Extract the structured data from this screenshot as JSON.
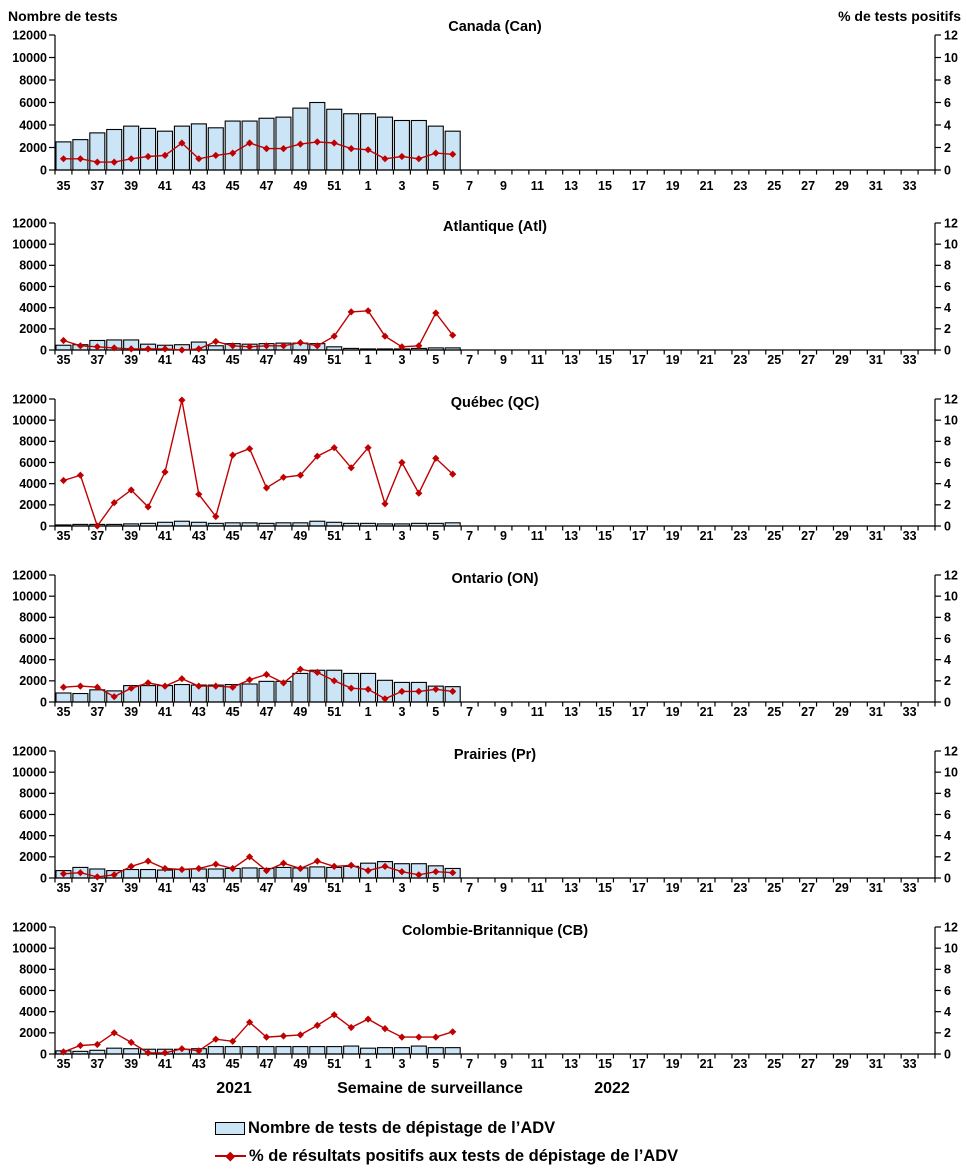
{
  "header": {
    "left_axis_title": "Nombre de tests",
    "right_axis_title": "% de tests positifs"
  },
  "footer": {
    "year_left": "2021",
    "x_axis_title": "Semaine de surveillance",
    "year_right": "2022"
  },
  "legend": {
    "bar_label": "Nombre de tests de dépistage de l’ADV",
    "line_label": "% de résultats positifs aux tests de dépistage de l’ADV"
  },
  "colors": {
    "bar_fill": "#CBE5F7",
    "bar_stroke": "#000000",
    "line": "#C00000",
    "axis": "#000000",
    "text": "#000000"
  },
  "chart_data": {
    "type": "combo_bar_line_small_multiples",
    "x_axis": {
      "title": "Semaine de surveillance",
      "weeks": [
        "35",
        "36",
        "37",
        "38",
        "39",
        "40",
        "41",
        "42",
        "43",
        "44",
        "45",
        "46",
        "47",
        "48",
        "49",
        "50",
        "51",
        "52",
        "1",
        "2",
        "3",
        "4",
        "5",
        "6",
        "7",
        "8",
        "9",
        "10",
        "11",
        "12",
        "13",
        "14",
        "15",
        "16",
        "17",
        "18",
        "19",
        "20",
        "21",
        "22",
        "23",
        "24",
        "25",
        "26",
        "27",
        "28",
        "29",
        "30",
        "31",
        "32",
        "33",
        "34"
      ],
      "tick_labels": [
        "35",
        "37",
        "39",
        "41",
        "43",
        "45",
        "47",
        "49",
        "51",
        "1",
        "3",
        "5",
        "7",
        "9",
        "11",
        "13",
        "15",
        "17",
        "19",
        "21",
        "23",
        "25",
        "27",
        "29",
        "31",
        "33"
      ],
      "year_left": "2021",
      "year_right": "2022"
    },
    "left_axis": {
      "title": "Nombre de tests",
      "min": 0,
      "max": 12000,
      "step": 2000,
      "tick_labels": [
        "0",
        "2000",
        "4000",
        "6000",
        "8000",
        "10000",
        "12000"
      ]
    },
    "right_axis": {
      "title": "% de tests positifs",
      "min": 0,
      "max": 12,
      "step": 2,
      "tick_labels": [
        "0",
        "2",
        "4",
        "6",
        "8",
        "10",
        "12"
      ]
    },
    "bar_series_name": "Nombre de tests de dépistage de l’ADV",
    "line_series_name": "% de résultats positifs aux tests de dépistage de l’ADV",
    "data_weeks": [
      "35",
      "36",
      "37",
      "38",
      "39",
      "40",
      "41",
      "42",
      "43",
      "44",
      "45",
      "46",
      "47",
      "48",
      "49",
      "50",
      "51",
      "52",
      "1",
      "2",
      "3",
      "4",
      "5",
      "6"
    ],
    "panels": [
      {
        "title": "Canada (Can)",
        "tests": [
          2500,
          2700,
          3300,
          3600,
          3900,
          3700,
          3450,
          3900,
          4100,
          3750,
          4350,
          4350,
          4600,
          4700,
          5500,
          6000,
          5400,
          5000,
          5000,
          4700,
          4400,
          4400,
          3900,
          3450
        ],
        "pct_positive": [
          1.0,
          1.0,
          0.7,
          0.7,
          1.0,
          1.2,
          1.3,
          2.4,
          1.0,
          1.3,
          1.5,
          2.4,
          1.9,
          1.9,
          2.3,
          2.5,
          2.4,
          1.9,
          1.8,
          1.0,
          1.2,
          1.0,
          1.5,
          1.4
        ]
      },
      {
        "title": "Atlantique (Atl)",
        "tests": [
          450,
          500,
          900,
          950,
          950,
          550,
          450,
          500,
          750,
          400,
          600,
          550,
          600,
          650,
          650,
          600,
          300,
          150,
          100,
          100,
          100,
          150,
          200,
          200
        ],
        "pct_positive": [
          0.9,
          0.4,
          0.3,
          0.2,
          0.1,
          0.1,
          0.1,
          0.0,
          0.1,
          0.8,
          0.4,
          0.3,
          0.4,
          0.4,
          0.7,
          0.4,
          1.3,
          3.6,
          3.7,
          1.3,
          0.3,
          0.4,
          3.5,
          1.4
        ]
      },
      {
        "title": "Québec (QC)",
        "tests": [
          100,
          150,
          150,
          150,
          200,
          250,
          350,
          450,
          350,
          250,
          300,
          300,
          250,
          300,
          300,
          450,
          350,
          250,
          250,
          200,
          200,
          250,
          250,
          300
        ],
        "pct_positive": [
          4.3,
          4.8,
          0.0,
          2.2,
          3.4,
          1.8,
          5.1,
          11.9,
          3.0,
          0.9,
          6.7,
          7.3,
          3.6,
          4.6,
          4.8,
          6.6,
          7.4,
          5.5,
          7.4,
          2.1,
          6.0,
          3.1,
          6.4,
          4.9
        ]
      },
      {
        "title": "Ontario (ON)",
        "tests": [
          850,
          800,
          1150,
          1050,
          1550,
          1550,
          1550,
          1650,
          1600,
          1600,
          1650,
          1700,
          1950,
          1950,
          2700,
          3000,
          3000,
          2700,
          2700,
          2050,
          1850,
          1850,
          1500,
          1450
        ],
        "pct_positive": [
          1.4,
          1.5,
          1.4,
          0.5,
          1.3,
          1.8,
          1.5,
          2.2,
          1.5,
          1.5,
          1.4,
          2.1,
          2.6,
          1.8,
          3.1,
          2.8,
          2.0,
          1.3,
          1.2,
          0.3,
          1.0,
          1.0,
          1.2,
          1.0
        ]
      },
      {
        "title": "Prairies (Pr)",
        "tests": [
          700,
          1000,
          850,
          700,
          800,
          800,
          750,
          800,
          850,
          850,
          900,
          950,
          900,
          1000,
          950,
          1050,
          1000,
          1100,
          1400,
          1550,
          1350,
          1350,
          1150,
          900
        ],
        "pct_positive": [
          0.4,
          0.5,
          0.1,
          0.3,
          1.1,
          1.6,
          0.9,
          0.8,
          0.9,
          1.3,
          0.9,
          2.0,
          0.7,
          1.4,
          0.9,
          1.6,
          1.1,
          1.2,
          0.7,
          1.1,
          0.6,
          0.3,
          0.6,
          0.5
        ]
      },
      {
        "title": "Colombie-Britannique (CB)",
        "tests": [
          300,
          250,
          350,
          550,
          500,
          450,
          450,
          450,
          500,
          700,
          700,
          700,
          700,
          700,
          700,
          700,
          700,
          750,
          550,
          600,
          600,
          750,
          600,
          600
        ],
        "pct_positive": [
          0.2,
          0.8,
          0.9,
          2.0,
          1.1,
          0.1,
          0.1,
          0.5,
          0.3,
          1.4,
          1.2,
          3.0,
          1.6,
          1.7,
          1.8,
          2.7,
          3.7,
          2.5,
          3.3,
          2.4,
          1.6,
          1.6,
          1.6,
          2.1
        ]
      }
    ]
  }
}
